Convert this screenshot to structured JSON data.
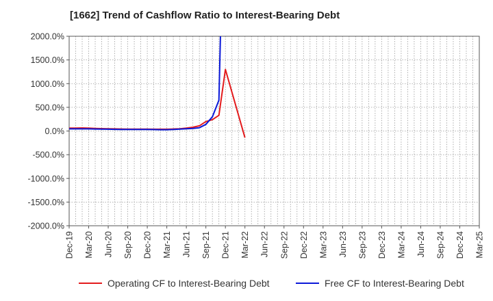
{
  "title": "[1662]  Trend of Cashflow Ratio to Interest-Bearing Debt",
  "chart_data": {
    "type": "line",
    "title": "[1662]  Trend of Cashflow Ratio to Interest-Bearing Debt",
    "xlabel": "",
    "ylabel": "",
    "ylim": [
      -2000,
      2000
    ],
    "yticks": [
      "2000.0%",
      "1500.0%",
      "1000.0%",
      "500.0%",
      "0.0%",
      "-500.0%",
      "-1000.0%",
      "-1500.0%",
      "-2000.0%"
    ],
    "ytick_values": [
      2000,
      1500,
      1000,
      500,
      0,
      -500,
      -1000,
      -1500,
      -2000
    ],
    "x_start": "Dec-19",
    "x_end": "Mar-25",
    "xticks": [
      "Dec-19",
      "Mar-20",
      "Jun-20",
      "Sep-20",
      "Dec-20",
      "Mar-21",
      "Jun-21",
      "Sep-21",
      "Dec-21",
      "Mar-22",
      "Jun-22",
      "Sep-22",
      "Dec-22",
      "Mar-23",
      "Jun-23",
      "Sep-23",
      "Dec-23",
      "Mar-24",
      "Jun-24",
      "Sep-24",
      "Dec-24",
      "Mar-25"
    ],
    "grid": true,
    "legend_position": "bottom",
    "series": [
      {
        "name": "Operating CF to Interest-Bearing Debt",
        "color": "#e31a1c",
        "points": [
          [
            "Dec-19",
            60
          ],
          [
            "Jan-20",
            60
          ],
          [
            "Feb-20",
            65
          ],
          [
            "Mar-20",
            60
          ],
          [
            "Apr-20",
            55
          ],
          [
            "May-20",
            50
          ],
          [
            "Jun-20",
            48
          ],
          [
            "Jul-20",
            45
          ],
          [
            "Aug-20",
            42
          ],
          [
            "Sep-20",
            40
          ],
          [
            "Oct-20",
            40
          ],
          [
            "Nov-20",
            40
          ],
          [
            "Dec-20",
            40
          ],
          [
            "Jan-21",
            38
          ],
          [
            "Feb-21",
            38
          ],
          [
            "Mar-21",
            38
          ],
          [
            "Apr-21",
            42
          ],
          [
            "May-21",
            48
          ],
          [
            "Jun-21",
            60
          ],
          [
            "Jul-21",
            80
          ],
          [
            "Aug-21",
            110
          ],
          [
            "Sep-21",
            200
          ],
          [
            "Oct-21",
            240
          ],
          [
            "Nov-21",
            330
          ],
          [
            "Dec-21",
            1300
          ],
          [
            "Mar-22",
            -140
          ]
        ]
      },
      {
        "name": "Free CF to Interest-Bearing Debt",
        "color": "#0a18d8",
        "points": [
          [
            "Dec-19",
            45
          ],
          [
            "Jan-20",
            45
          ],
          [
            "Feb-20",
            45
          ],
          [
            "Mar-20",
            45
          ],
          [
            "Apr-20",
            42
          ],
          [
            "May-20",
            40
          ],
          [
            "Jun-20",
            38
          ],
          [
            "Jul-20",
            35
          ],
          [
            "Aug-20",
            33
          ],
          [
            "Sep-20",
            33
          ],
          [
            "Oct-20",
            33
          ],
          [
            "Nov-20",
            32
          ],
          [
            "Dec-20",
            32
          ],
          [
            "Jan-21",
            30
          ],
          [
            "Feb-21",
            28
          ],
          [
            "Mar-21",
            28
          ],
          [
            "Apr-21",
            32
          ],
          [
            "May-21",
            40
          ],
          [
            "Jun-21",
            48
          ],
          [
            "Jul-21",
            55
          ],
          [
            "Aug-21",
            70
          ],
          [
            "Sep-21",
            140
          ],
          [
            "Oct-21",
            300
          ],
          [
            "Nov-21",
            650
          ],
          [
            "Nov-21b",
            2100
          ]
        ]
      }
    ]
  }
}
